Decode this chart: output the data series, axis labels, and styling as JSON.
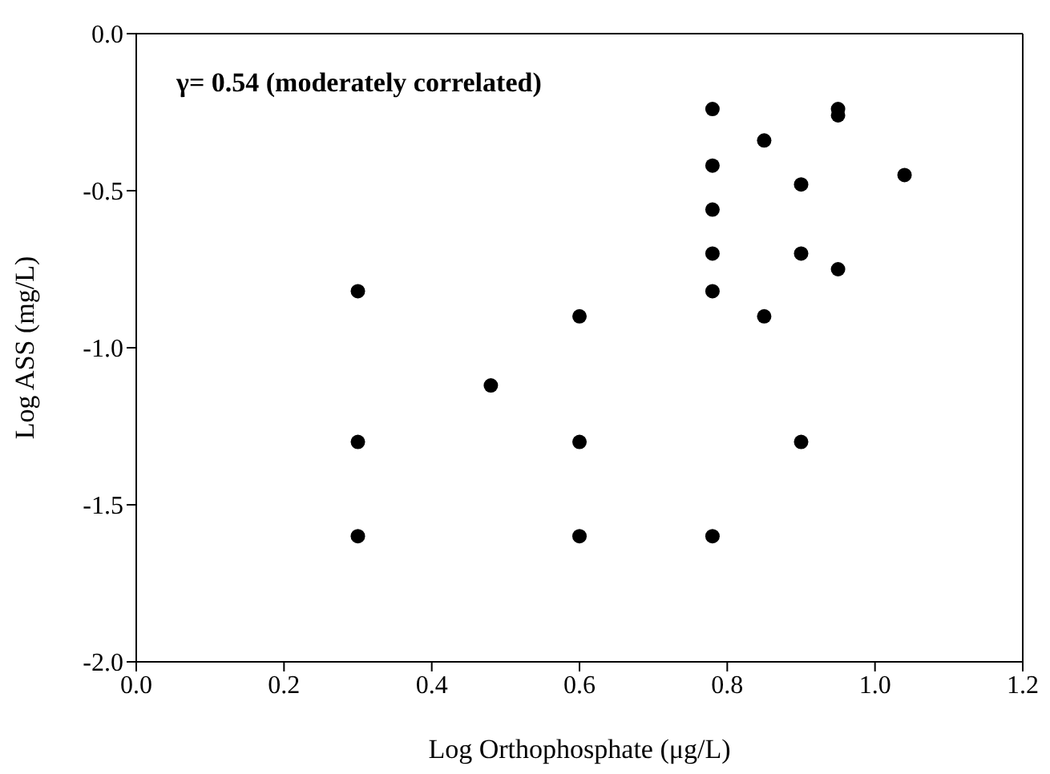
{
  "chart_data": {
    "type": "scatter",
    "xlabel": "Log Orthophosphate (μg/L)",
    "ylabel": "Log ASS (mg/L)",
    "annotations": [
      "γ= 0.54 (moderately correlated)"
    ],
    "x": [
      0.3,
      0.3,
      0.3,
      0.48,
      0.6,
      0.6,
      0.6,
      0.78,
      0.78,
      0.78,
      0.78,
      0.78,
      0.78,
      0.85,
      0.85,
      0.9,
      0.9,
      0.9,
      0.95,
      0.95,
      0.95,
      1.04
    ],
    "values": [
      -0.82,
      -1.3,
      -1.6,
      -1.12,
      -0.9,
      -1.3,
      -1.6,
      -0.24,
      -0.42,
      -0.56,
      -0.7,
      -0.82,
      -1.6,
      -0.34,
      -0.9,
      -0.48,
      -0.7,
      -1.3,
      -0.24,
      -0.26,
      -0.75,
      -0.45
    ],
    "color": "#000000",
    "marker": "circle",
    "xlim": [
      0.0,
      1.2
    ],
    "xticks": [
      {
        "value": 0,
        "label": "0.0"
      },
      0.2,
      0.4,
      0.6,
      0.8,
      {
        "value": 1,
        "label": "1.0"
      },
      1.2
    ],
    "ylim": [
      -2.0,
      0.0
    ],
    "yticks": [
      {
        "value": -2,
        "label": "-2.0"
      },
      {
        "value": -1.5,
        "label": "-1.5"
      },
      {
        "value": -1,
        "label": "-1.0"
      },
      {
        "value": -0.5,
        "label": "-0.5"
      },
      {
        "value": 0,
        "label": "0.0"
      }
    ],
    "grid": false,
    "legend": false
  }
}
